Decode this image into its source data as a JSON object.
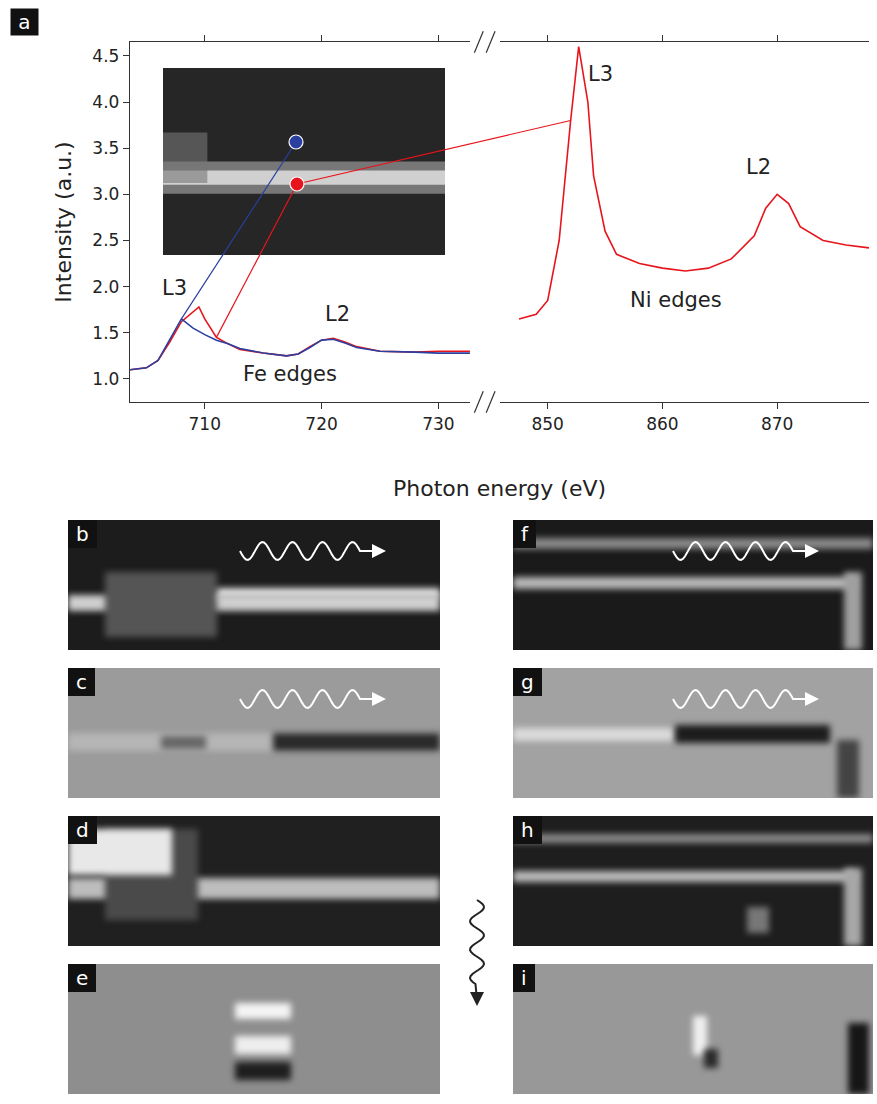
{
  "chart_data": {
    "type": "line",
    "label": "a",
    "xlabel": "Photon energy (eV)",
    "ylabel": "Intensity (a.u.)",
    "xlim": [
      703.6,
      732.7
    ],
    "xticks": [
      710,
      720,
      730
    ],
    "x2lim": [
      845.8,
      878
    ],
    "x2ticks": [
      850,
      860,
      870
    ],
    "ylim": [
      0.75,
      4.65
    ],
    "yticks": [
      {
        "value": 1,
        "label": "1.0"
      },
      {
        "value": 1.5,
        "label": "1.5"
      },
      {
        "value": 2,
        "label": "2.0"
      },
      {
        "value": 2.5,
        "label": "2.5"
      },
      {
        "value": 3,
        "label": "3.0"
      },
      {
        "value": 3.5,
        "label": "3.5"
      },
      {
        "value": 4,
        "label": "4.0"
      },
      {
        "value": 4.5,
        "label": "4.5"
      }
    ],
    "grid": false,
    "series": [
      {
        "color": "#e8141c",
        "axis": "x",
        "x": [
          703.6,
          705,
          706,
          707,
          708,
          709,
          709.5,
          710,
          711,
          712,
          713,
          715,
          717,
          718,
          719,
          720,
          721,
          722,
          723,
          725,
          728,
          730,
          732.7
        ],
        "values": [
          1.1,
          1.12,
          1.2,
          1.4,
          1.62,
          1.72,
          1.78,
          1.65,
          1.45,
          1.38,
          1.32,
          1.28,
          1.25,
          1.27,
          1.35,
          1.42,
          1.44,
          1.4,
          1.35,
          1.3,
          1.29,
          1.3,
          1.3
        ]
      },
      {
        "color": "#2b3fa0",
        "axis": "x",
        "x": [
          703.6,
          705,
          706,
          707,
          708,
          709,
          710,
          711,
          712,
          713,
          715,
          717,
          718,
          719,
          720,
          721,
          722,
          723,
          725,
          728,
          730,
          732.7
        ],
        "values": [
          1.1,
          1.12,
          1.2,
          1.42,
          1.65,
          1.55,
          1.48,
          1.42,
          1.38,
          1.33,
          1.28,
          1.25,
          1.27,
          1.34,
          1.42,
          1.43,
          1.39,
          1.34,
          1.3,
          1.29,
          1.28,
          1.28
        ]
      },
      {
        "color": "#e8141c",
        "axis": "x2",
        "x": [
          847.5,
          849,
          850,
          851,
          852,
          852.7,
          853.5,
          854,
          855,
          856,
          858,
          860,
          862,
          864,
          866,
          868,
          869,
          870,
          871,
          872,
          874,
          876,
          878
        ],
        "values": [
          1.65,
          1.7,
          1.85,
          2.5,
          3.8,
          4.6,
          4.0,
          3.2,
          2.6,
          2.35,
          2.25,
          2.2,
          2.17,
          2.2,
          2.3,
          2.55,
          2.85,
          3.0,
          2.9,
          2.65,
          2.5,
          2.45,
          2.42
        ]
      }
    ],
    "annotations": [
      {
        "text": "L3",
        "x": 707.4,
        "y": 1.98,
        "axis": "x"
      },
      {
        "text": "L2",
        "x": 721.4,
        "y": 1.7,
        "axis": "x"
      },
      {
        "text": "Fe edges",
        "x": 717.3,
        "y": 1.05,
        "axis": "x"
      },
      {
        "text": "L3",
        "x": 854.6,
        "y": 4.3,
        "axis": "x2"
      },
      {
        "text": "L2",
        "x": 868.4,
        "y": 3.3,
        "axis": "x2"
      },
      {
        "text": "Ni edges",
        "x": 861.2,
        "y": 1.85,
        "axis": "x2"
      }
    ]
  },
  "panels": [
    "b",
    "c",
    "d",
    "e",
    "f",
    "g",
    "h",
    "i"
  ]
}
